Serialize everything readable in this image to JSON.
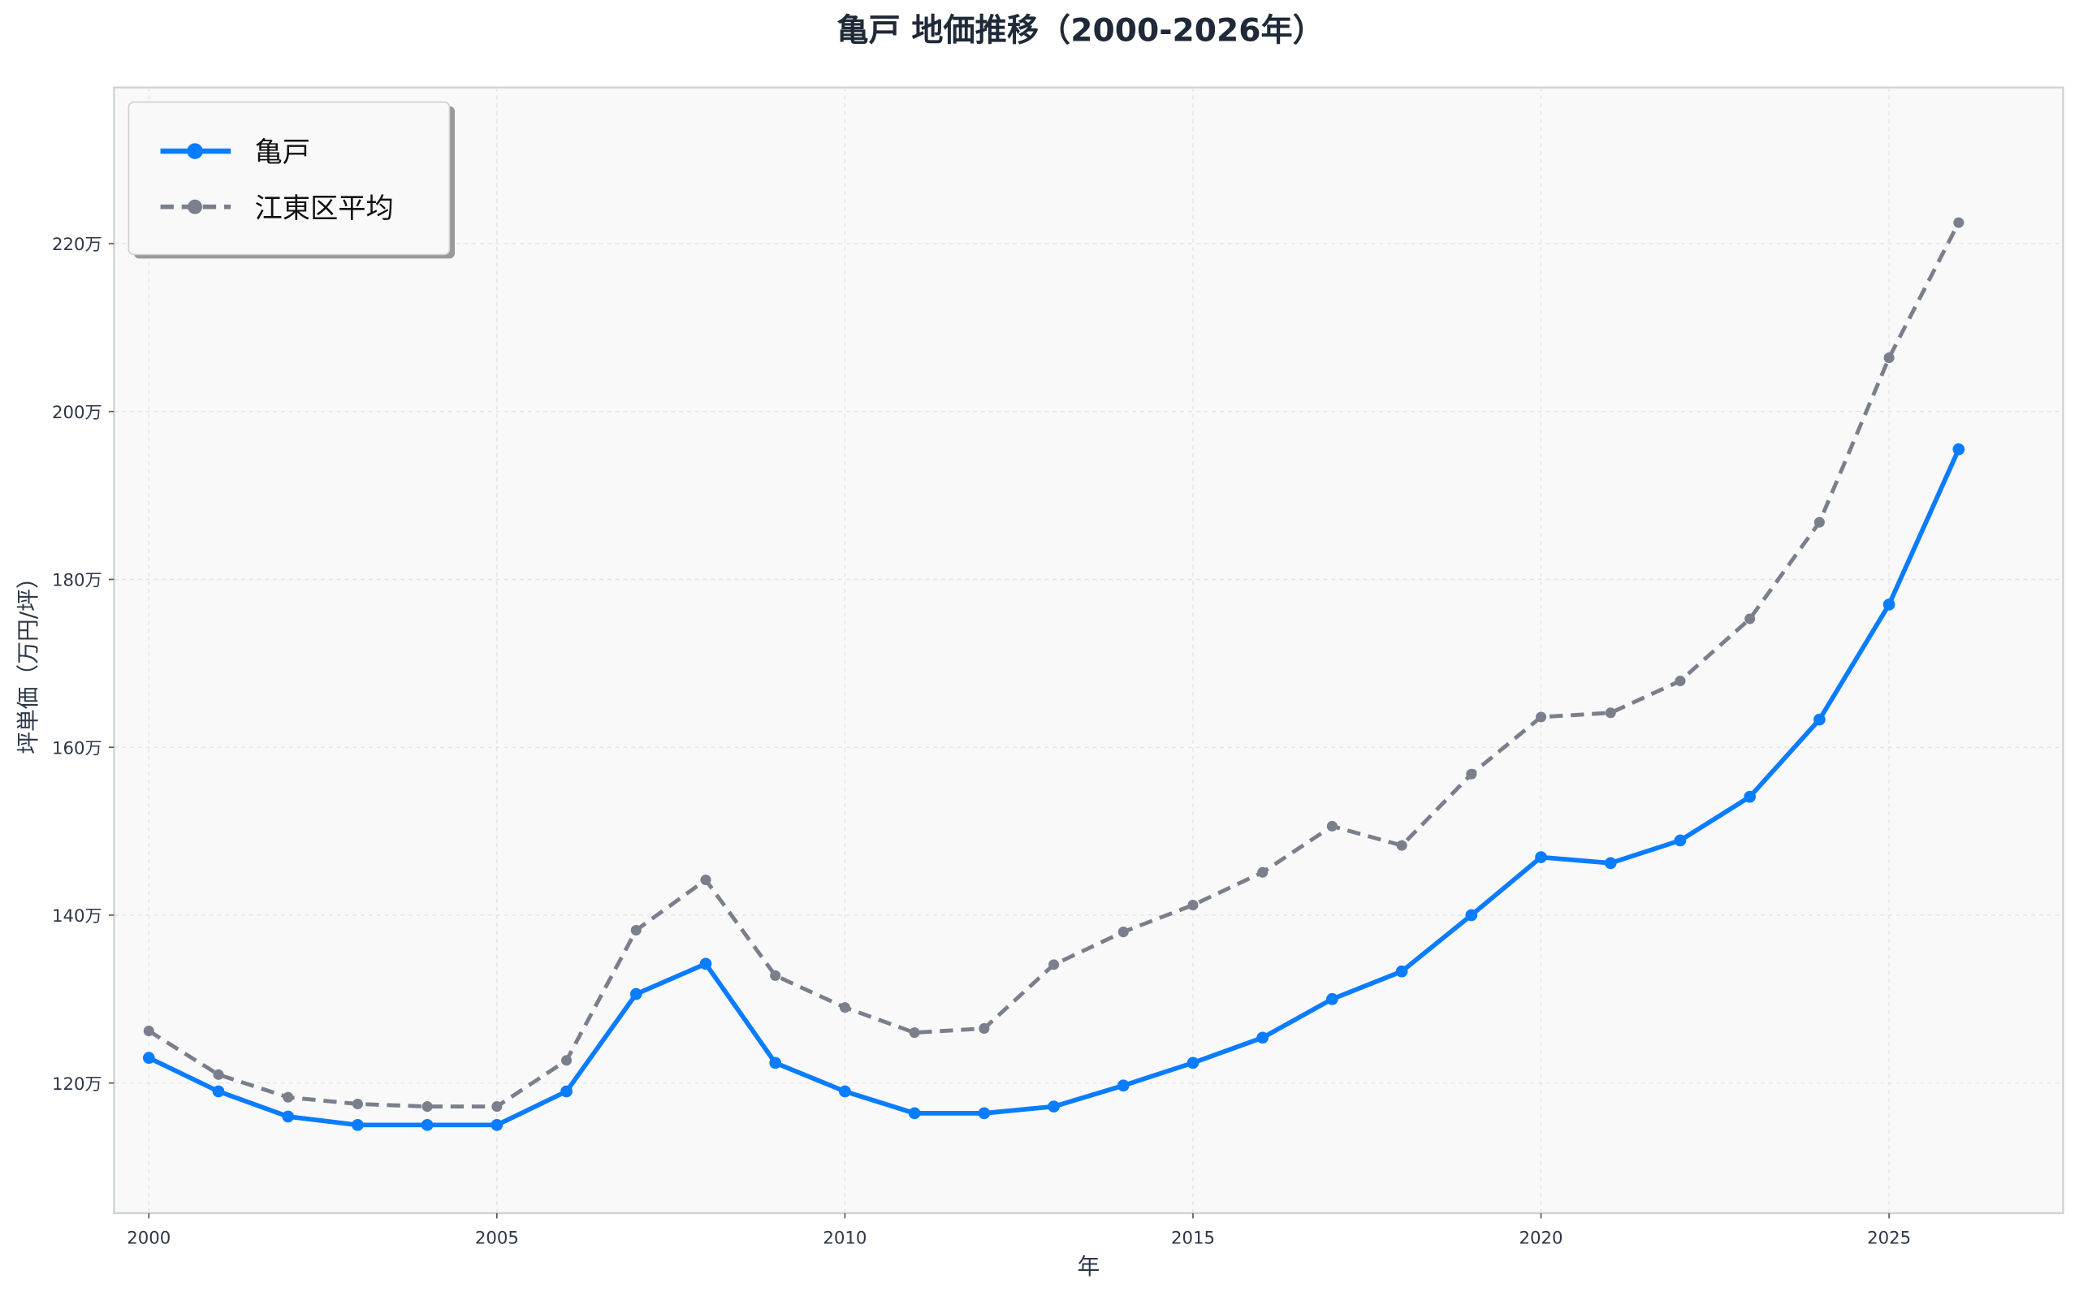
{
  "chart_data": {
    "type": "line",
    "title": "亀戸 地価推移（2000-2026年）",
    "xlabel": "年",
    "ylabel": "坪単価（万円/坪）",
    "xlim": [
      1999.5,
      2027.5
    ],
    "ylim": [
      104.5,
      238.6
    ],
    "grid": true,
    "legend_position": "top-left",
    "x_ticks": [
      2000,
      2005,
      2010,
      2015,
      2020,
      2025
    ],
    "y_ticks": [
      120,
      140,
      160,
      180,
      200,
      220
    ],
    "y_tick_labels": [
      "120万",
      "140万",
      "160万",
      "180万",
      "200万",
      "220万"
    ],
    "x": [
      2000,
      2001,
      2002,
      2003,
      2004,
      2005,
      2006,
      2007,
      2008,
      2009,
      2010,
      2011,
      2012,
      2013,
      2014,
      2015,
      2016,
      2017,
      2018,
      2019,
      2020,
      2021,
      2022,
      2023,
      2024,
      2025,
      2026
    ],
    "series": [
      {
        "name": "亀戸",
        "color": "#0a7cff",
        "style": "solid",
        "values": [
          123,
          119,
          116,
          115,
          115,
          115,
          119,
          130.6,
          134.2,
          122.4,
          119,
          116.4,
          116.4,
          117.2,
          119.7,
          122.4,
          125.4,
          130,
          133.3,
          140,
          146.9,
          146.2,
          148.9,
          154.1,
          163.3,
          177,
          195.5
        ]
      },
      {
        "name": "江東区平均",
        "color": "#7a7f8c",
        "style": "dashed",
        "values": [
          126.2,
          121,
          118.3,
          117.5,
          117.2,
          117.2,
          122.7,
          138.2,
          144.2,
          132.8,
          129,
          126,
          126.5,
          134.1,
          138,
          141.2,
          145.1,
          150.6,
          148.3,
          156.8,
          163.6,
          164.1,
          167.9,
          175.3,
          186.8,
          206.4,
          222.5
        ]
      }
    ]
  }
}
